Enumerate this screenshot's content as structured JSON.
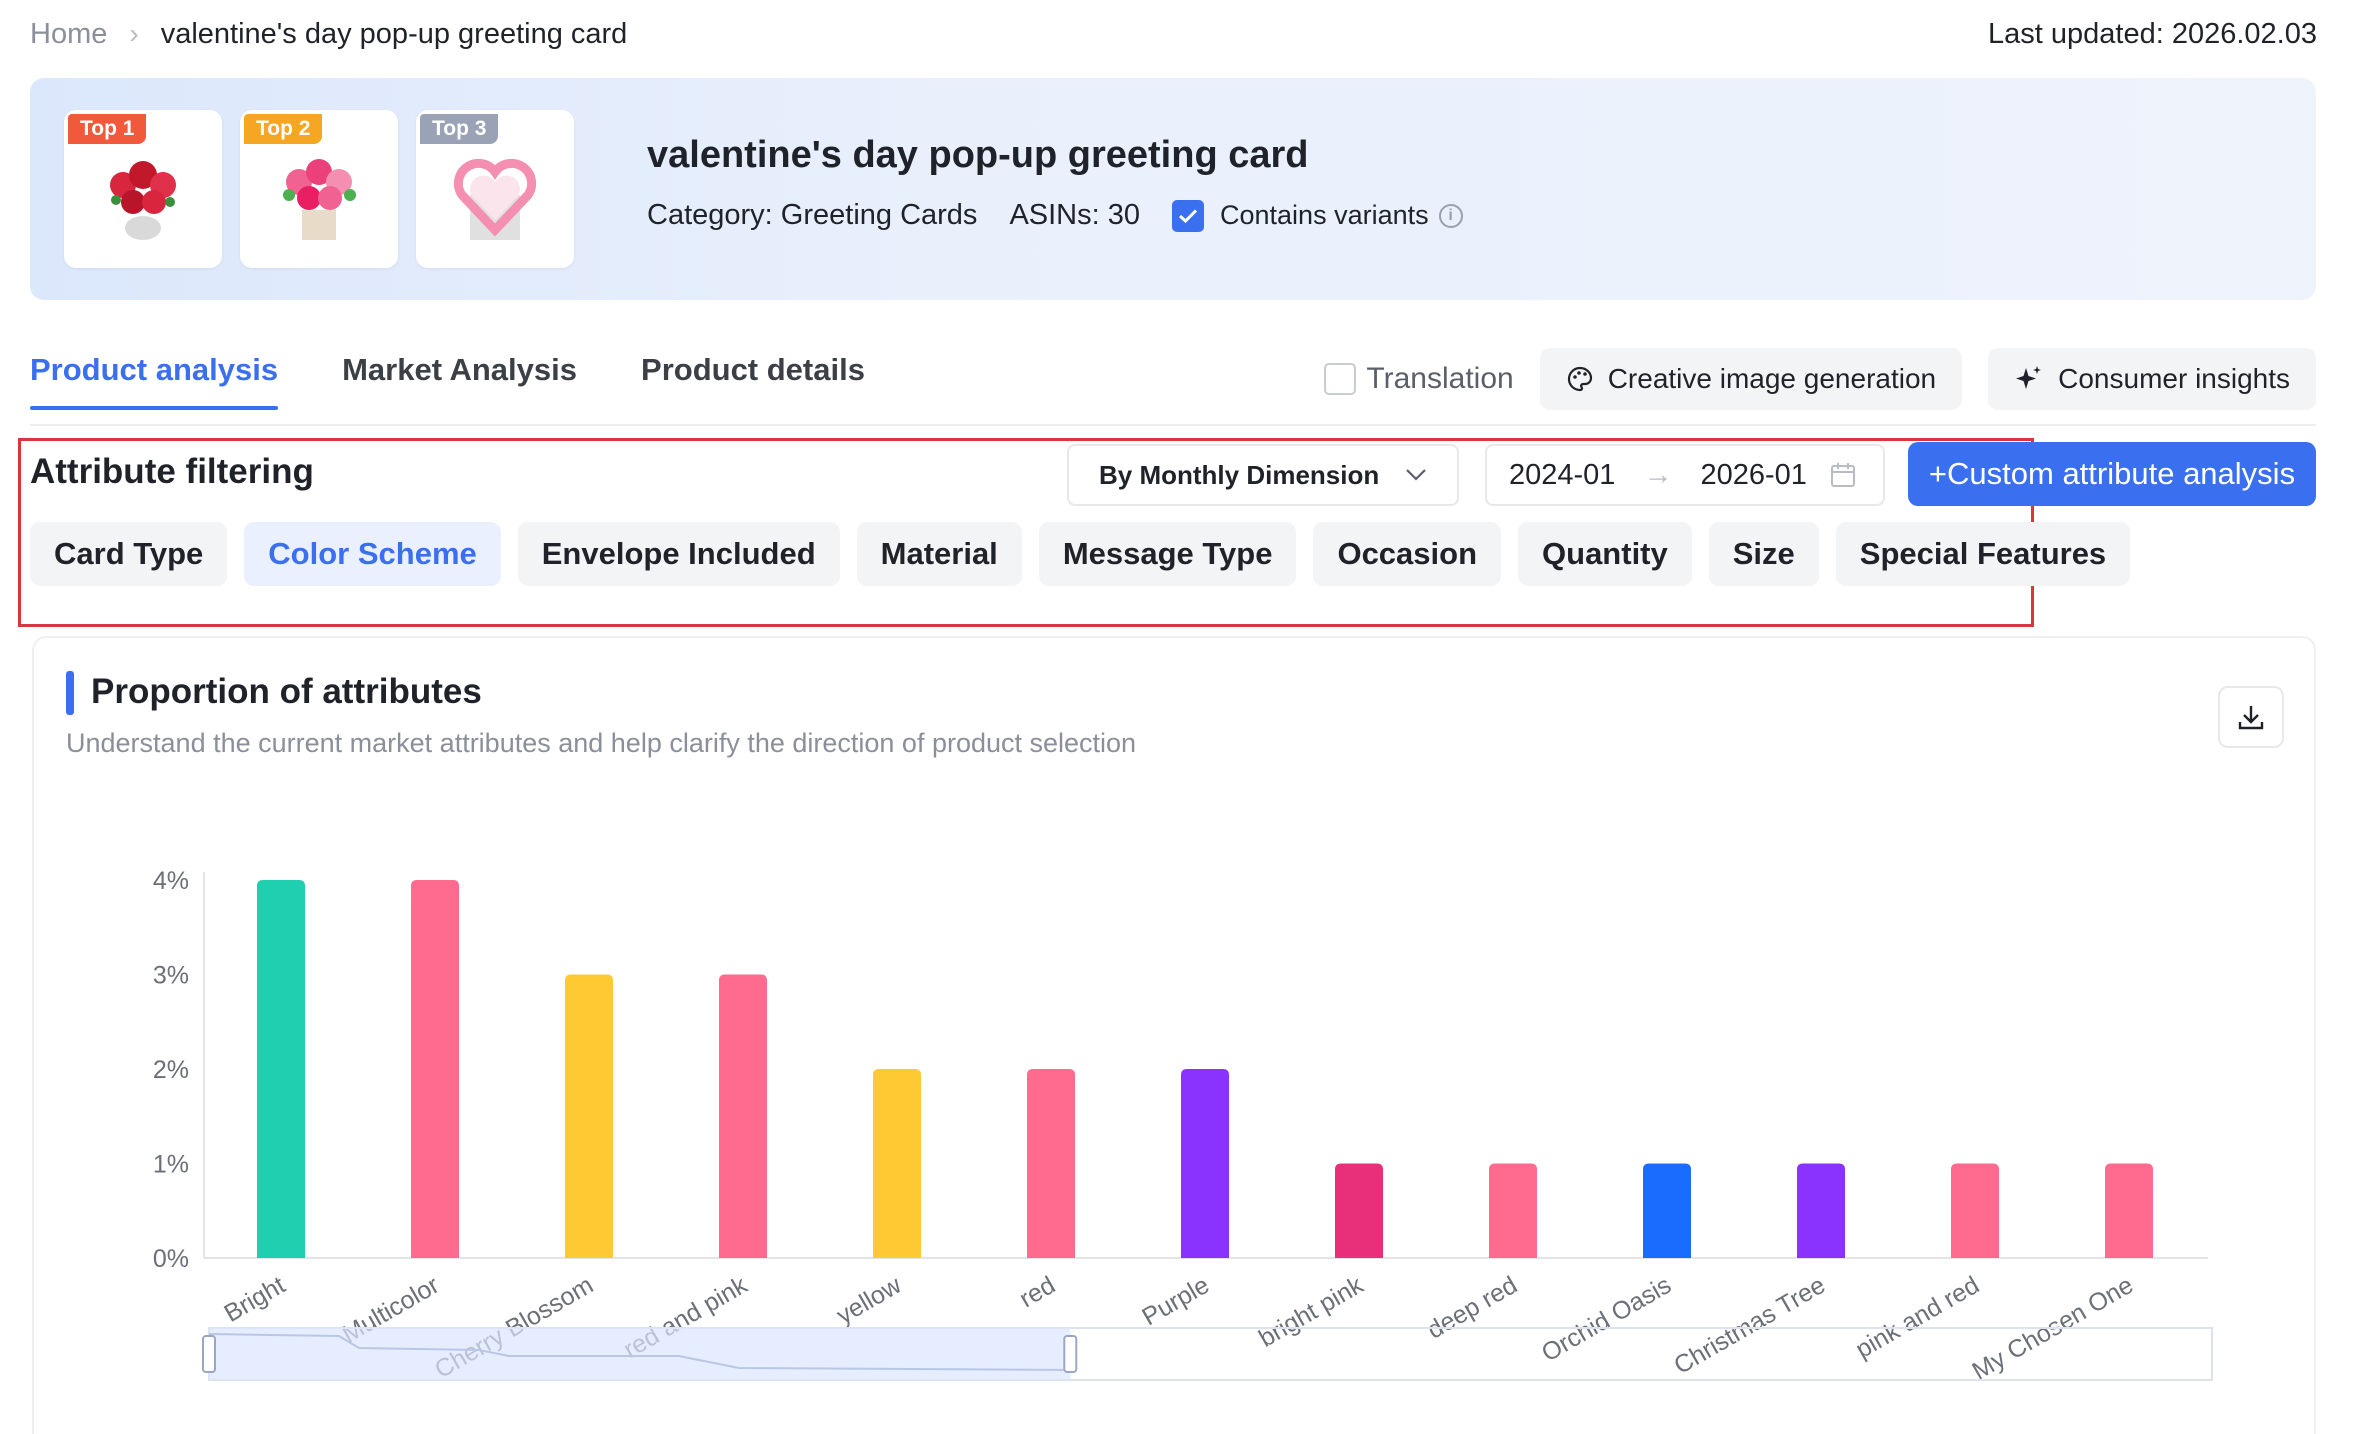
{
  "breadcrumb": {
    "home": "Home",
    "current": "valentine's day pop-up greeting card"
  },
  "last_updated": "Last updated: 2026.02.03",
  "hero": {
    "top_products": [
      {
        "badge": "Top 1",
        "badge_color": "#f0593b"
      },
      {
        "badge": "Top 2",
        "badge_color": "#f5a623"
      },
      {
        "badge": "Top 3",
        "badge_color": "#9aa3b5"
      }
    ],
    "title": "valentine's day pop-up greeting card",
    "category": "Category: Greeting Cards",
    "asins": "ASINs: 30",
    "contains_variants_label": "Contains variants",
    "contains_variants_checked": true
  },
  "tabs": [
    {
      "label": "Product analysis",
      "active": true
    },
    {
      "label": "Market Analysis",
      "active": false
    },
    {
      "label": "Product details",
      "active": false
    }
  ],
  "tools": {
    "translation_label": "Translation",
    "creative_label": "Creative image generation",
    "consumer_label": "Consumer insights"
  },
  "filter": {
    "title": "Attribute filtering",
    "dimension": "By Monthly Dimension",
    "date_start": "2024-01",
    "date_end": "2026-01",
    "custom_button": "+Custom attribute analysis",
    "chips": [
      {
        "label": "Card Type",
        "active": false
      },
      {
        "label": "Color Scheme",
        "active": true
      },
      {
        "label": "Envelope Included",
        "active": false
      },
      {
        "label": "Material",
        "active": false
      },
      {
        "label": "Message Type",
        "active": false
      },
      {
        "label": "Occasion",
        "active": false
      },
      {
        "label": "Quantity",
        "active": false
      },
      {
        "label": "Size",
        "active": false
      },
      {
        "label": "Special Features",
        "active": false
      }
    ]
  },
  "chart_card": {
    "title": "Proportion of attributes",
    "subtitle": "Understand the current market attributes and help clarify the direction of product selection"
  },
  "chart_data": {
    "type": "bar",
    "categories": [
      "Bright",
      "Multicolor",
      "Cherry Blossom",
      "red and pink",
      "yellow",
      "red",
      "Purple",
      "bright pink",
      "deep red",
      "Orchid Oasis",
      "Christmas Tree",
      "pink and red",
      "My Chosen One"
    ],
    "values": [
      4,
      4,
      3,
      3,
      2,
      2,
      2,
      1,
      1,
      1,
      1,
      1,
      1
    ],
    "colors": [
      "#1ecfb0",
      "#ff6b8f",
      "#ffc933",
      "#ff6b8f",
      "#ffc933",
      "#ff6b8f",
      "#8a33ff",
      "#e8307a",
      "#ff6b8f",
      "#1a6cff",
      "#8a33ff",
      "#ff6b8f",
      "#ff6b8f"
    ],
    "y_ticks": [
      "0%",
      "1%",
      "2%",
      "3%",
      "4%"
    ],
    "ylim": [
      0,
      4
    ],
    "grid": false,
    "zoom_slider": {
      "start": 0,
      "end": 0.43
    }
  }
}
